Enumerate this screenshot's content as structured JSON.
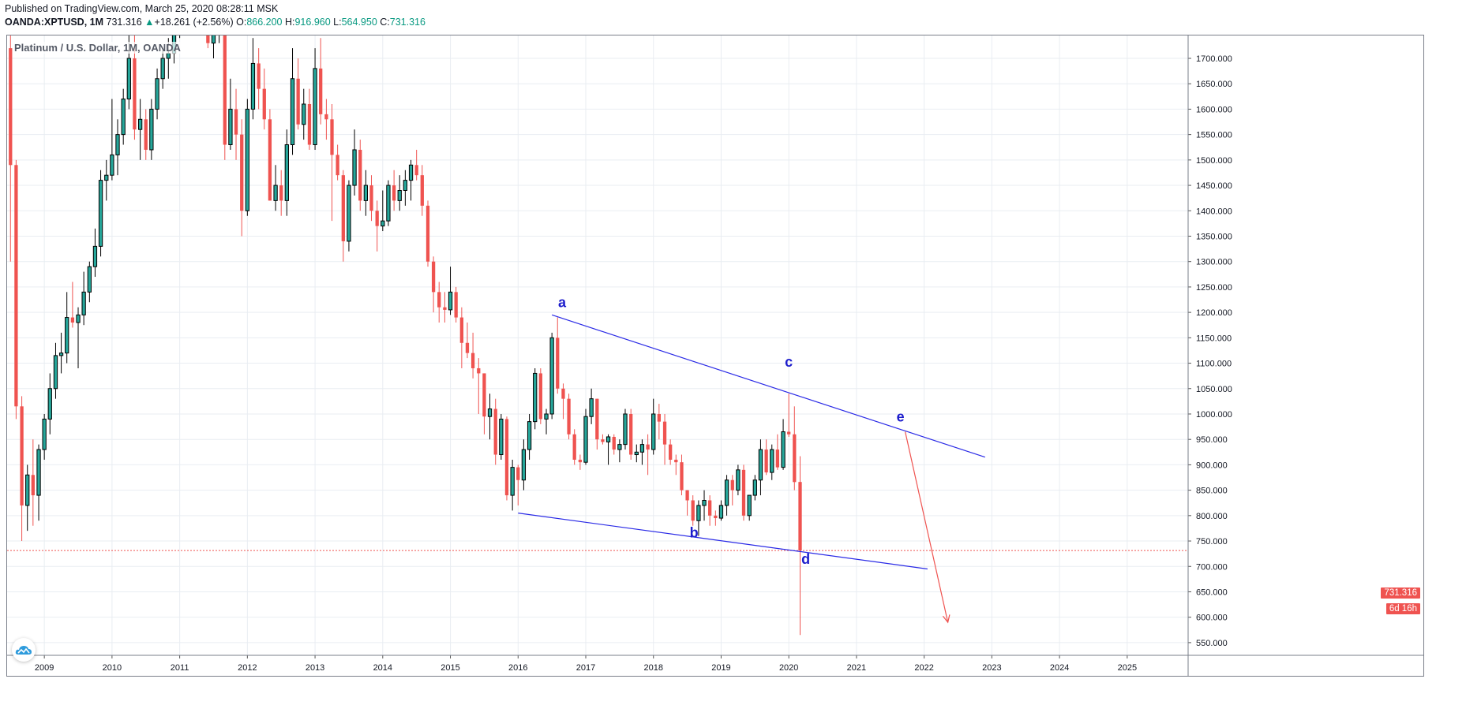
{
  "header": {
    "published": "Published on TradingView.com, March 25, 2020 08:28:11 MSK",
    "symbol": "OANDA:XPTUSD, 1M",
    "last": "731.316",
    "change_arrow": "▲",
    "change": "+18.261 (+2.56%)",
    "open_label": "O:",
    "open": "866.200",
    "high_label": "H:",
    "high": "916.960",
    "low_label": "L:",
    "low": "564.950",
    "close_label": "C:",
    "close": "731.316"
  },
  "chart_title": "Platinum / U.S. Dollar, 1M, OANDA",
  "price_tag": "731.316",
  "countdown": "6d 16h",
  "logo_icon": "tradingview-cloud-icon",
  "chart_data": {
    "type": "candlestick",
    "interval": "1M",
    "y_ticks": [
      550,
      600,
      650,
      700,
      750,
      800,
      850,
      900,
      950,
      1000,
      1050,
      1100,
      1150,
      1200,
      1250,
      1300,
      1350,
      1400,
      1450,
      1500,
      1550,
      1600,
      1650,
      1700
    ],
    "y_tick_decimals": 3,
    "ylim": [
      525,
      1745
    ],
    "x_ticks": [
      "2009",
      "2010",
      "2011",
      "2012",
      "2013",
      "2014",
      "2015",
      "2016",
      "2017",
      "2018",
      "2019",
      "2020",
      "2021",
      "2022",
      "2023",
      "2024",
      "2025"
    ],
    "x_range": [
      2008.45,
      2025.9
    ],
    "grid": true,
    "colors": {
      "up": "#26a69a",
      "up_border": "#000000",
      "down": "#ef5350",
      "grid": "#e9edf2",
      "line": "#2a2ae6",
      "arrow": "#ef5350"
    },
    "candle_width_fraction": 0.6,
    "candles": [
      {
        "t": 2008.5,
        "o": 1720,
        "h": 1790,
        "l": 1300,
        "c": 1490
      },
      {
        "t": 2008.583,
        "o": 1490,
        "h": 1500,
        "l": 990,
        "c": 1015
      },
      {
        "t": 2008.667,
        "o": 1015,
        "h": 1035,
        "l": 750,
        "c": 820
      },
      {
        "t": 2008.75,
        "o": 820,
        "h": 900,
        "l": 770,
        "c": 880
      },
      {
        "t": 2008.833,
        "o": 880,
        "h": 950,
        "l": 780,
        "c": 840
      },
      {
        "t": 2008.917,
        "o": 840,
        "h": 940,
        "l": 790,
        "c": 930
      },
      {
        "t": 2009.0,
        "o": 930,
        "h": 1000,
        "l": 910,
        "c": 990
      },
      {
        "t": 2009.083,
        "o": 990,
        "h": 1080,
        "l": 960,
        "c": 1050
      },
      {
        "t": 2009.167,
        "o": 1050,
        "h": 1140,
        "l": 1030,
        "c": 1115
      },
      {
        "t": 2009.25,
        "o": 1115,
        "h": 1160,
        "l": 1080,
        "c": 1120
      },
      {
        "t": 2009.333,
        "o": 1120,
        "h": 1240,
        "l": 1100,
        "c": 1190
      },
      {
        "t": 2009.417,
        "o": 1190,
        "h": 1260,
        "l": 1170,
        "c": 1180
      },
      {
        "t": 2009.5,
        "o": 1180,
        "h": 1210,
        "l": 1090,
        "c": 1195
      },
      {
        "t": 2009.583,
        "o": 1195,
        "h": 1280,
        "l": 1175,
        "c": 1240
      },
      {
        "t": 2009.667,
        "o": 1240,
        "h": 1300,
        "l": 1220,
        "c": 1290
      },
      {
        "t": 2009.75,
        "o": 1290,
        "h": 1365,
        "l": 1270,
        "c": 1330
      },
      {
        "t": 2009.833,
        "o": 1330,
        "h": 1480,
        "l": 1310,
        "c": 1460
      },
      {
        "t": 2009.917,
        "o": 1460,
        "h": 1500,
        "l": 1420,
        "c": 1470
      },
      {
        "t": 2010.0,
        "o": 1470,
        "h": 1620,
        "l": 1460,
        "c": 1510
      },
      {
        "t": 2010.083,
        "o": 1510,
        "h": 1580,
        "l": 1470,
        "c": 1550
      },
      {
        "t": 2010.167,
        "o": 1550,
        "h": 1640,
        "l": 1530,
        "c": 1620
      },
      {
        "t": 2010.25,
        "o": 1620,
        "h": 1750,
        "l": 1600,
        "c": 1700
      },
      {
        "t": 2010.333,
        "o": 1700,
        "h": 1760,
        "l": 1540,
        "c": 1560
      },
      {
        "t": 2010.417,
        "o": 1560,
        "h": 1620,
        "l": 1500,
        "c": 1580
      },
      {
        "t": 2010.5,
        "o": 1580,
        "h": 1600,
        "l": 1500,
        "c": 1520
      },
      {
        "t": 2010.583,
        "o": 1520,
        "h": 1620,
        "l": 1500,
        "c": 1600
      },
      {
        "t": 2010.667,
        "o": 1600,
        "h": 1680,
        "l": 1580,
        "c": 1660
      },
      {
        "t": 2010.75,
        "o": 1660,
        "h": 1720,
        "l": 1640,
        "c": 1700
      },
      {
        "t": 2010.833,
        "o": 1700,
        "h": 1740,
        "l": 1660,
        "c": 1710
      },
      {
        "t": 2010.917,
        "o": 1710,
        "h": 1770,
        "l": 1690,
        "c": 1760
      },
      {
        "t": 2011.0,
        "o": 1760,
        "h": 1860,
        "l": 1740,
        "c": 1790
      },
      {
        "t": 2011.083,
        "o": 1790,
        "h": 1830,
        "l": 1750,
        "c": 1810
      },
      {
        "t": 2011.167,
        "o": 1810,
        "h": 1860,
        "l": 1780,
        "c": 1800
      },
      {
        "t": 2011.25,
        "o": 1800,
        "h": 1890,
        "l": 1780,
        "c": 1820
      },
      {
        "t": 2011.333,
        "o": 1820,
        "h": 1840,
        "l": 1760,
        "c": 1790
      },
      {
        "t": 2011.417,
        "o": 1790,
        "h": 1800,
        "l": 1720,
        "c": 1730
      },
      {
        "t": 2011.5,
        "o": 1730,
        "h": 1800,
        "l": 1700,
        "c": 1760
      },
      {
        "t": 2011.583,
        "o": 1760,
        "h": 1880,
        "l": 1730,
        "c": 1780
      },
      {
        "t": 2011.667,
        "o": 1780,
        "h": 1800,
        "l": 1500,
        "c": 1530
      },
      {
        "t": 2011.75,
        "o": 1530,
        "h": 1660,
        "l": 1520,
        "c": 1600
      },
      {
        "t": 2011.833,
        "o": 1600,
        "h": 1640,
        "l": 1500,
        "c": 1550
      },
      {
        "t": 2011.917,
        "o": 1550,
        "h": 1580,
        "l": 1350,
        "c": 1400
      },
      {
        "t": 2012.0,
        "o": 1400,
        "h": 1620,
        "l": 1390,
        "c": 1600
      },
      {
        "t": 2012.083,
        "o": 1600,
        "h": 1740,
        "l": 1580,
        "c": 1690
      },
      {
        "t": 2012.167,
        "o": 1690,
        "h": 1720,
        "l": 1600,
        "c": 1640
      },
      {
        "t": 2012.25,
        "o": 1640,
        "h": 1680,
        "l": 1560,
        "c": 1580
      },
      {
        "t": 2012.333,
        "o": 1580,
        "h": 1600,
        "l": 1420,
        "c": 1420
      },
      {
        "t": 2012.417,
        "o": 1420,
        "h": 1490,
        "l": 1400,
        "c": 1450
      },
      {
        "t": 2012.5,
        "o": 1450,
        "h": 1480,
        "l": 1390,
        "c": 1420
      },
      {
        "t": 2012.583,
        "o": 1420,
        "h": 1560,
        "l": 1390,
        "c": 1530
      },
      {
        "t": 2012.667,
        "o": 1530,
        "h": 1720,
        "l": 1510,
        "c": 1660
      },
      {
        "t": 2012.75,
        "o": 1660,
        "h": 1700,
        "l": 1560,
        "c": 1570
      },
      {
        "t": 2012.833,
        "o": 1570,
        "h": 1640,
        "l": 1540,
        "c": 1610
      },
      {
        "t": 2012.917,
        "o": 1610,
        "h": 1640,
        "l": 1520,
        "c": 1530
      },
      {
        "t": 2013.0,
        "o": 1530,
        "h": 1720,
        "l": 1520,
        "c": 1680
      },
      {
        "t": 2013.083,
        "o": 1680,
        "h": 1740,
        "l": 1570,
        "c": 1590
      },
      {
        "t": 2013.167,
        "o": 1590,
        "h": 1620,
        "l": 1540,
        "c": 1580
      },
      {
        "t": 2013.25,
        "o": 1580,
        "h": 1610,
        "l": 1380,
        "c": 1510
      },
      {
        "t": 2013.333,
        "o": 1510,
        "h": 1530,
        "l": 1460,
        "c": 1470
      },
      {
        "t": 2013.417,
        "o": 1470,
        "h": 1480,
        "l": 1300,
        "c": 1340
      },
      {
        "t": 2013.5,
        "o": 1340,
        "h": 1460,
        "l": 1320,
        "c": 1450
      },
      {
        "t": 2013.583,
        "o": 1450,
        "h": 1560,
        "l": 1430,
        "c": 1520
      },
      {
        "t": 2013.667,
        "o": 1520,
        "h": 1540,
        "l": 1400,
        "c": 1420
      },
      {
        "t": 2013.75,
        "o": 1420,
        "h": 1480,
        "l": 1390,
        "c": 1450
      },
      {
        "t": 2013.833,
        "o": 1450,
        "h": 1470,
        "l": 1380,
        "c": 1400
      },
      {
        "t": 2013.917,
        "o": 1400,
        "h": 1420,
        "l": 1320,
        "c": 1370
      },
      {
        "t": 2014.0,
        "o": 1370,
        "h": 1440,
        "l": 1360,
        "c": 1380
      },
      {
        "t": 2014.083,
        "o": 1380,
        "h": 1460,
        "l": 1370,
        "c": 1450
      },
      {
        "t": 2014.167,
        "o": 1450,
        "h": 1480,
        "l": 1400,
        "c": 1420
      },
      {
        "t": 2014.25,
        "o": 1420,
        "h": 1470,
        "l": 1400,
        "c": 1440
      },
      {
        "t": 2014.333,
        "o": 1440,
        "h": 1480,
        "l": 1410,
        "c": 1460
      },
      {
        "t": 2014.417,
        "o": 1460,
        "h": 1500,
        "l": 1420,
        "c": 1490
      },
      {
        "t": 2014.5,
        "o": 1490,
        "h": 1520,
        "l": 1460,
        "c": 1470
      },
      {
        "t": 2014.583,
        "o": 1470,
        "h": 1490,
        "l": 1390,
        "c": 1410
      },
      {
        "t": 2014.667,
        "o": 1410,
        "h": 1420,
        "l": 1290,
        "c": 1300
      },
      {
        "t": 2014.75,
        "o": 1300,
        "h": 1310,
        "l": 1200,
        "c": 1240
      },
      {
        "t": 2014.833,
        "o": 1240,
        "h": 1260,
        "l": 1180,
        "c": 1210
      },
      {
        "t": 2014.917,
        "o": 1210,
        "h": 1240,
        "l": 1180,
        "c": 1205
      },
      {
        "t": 2015.0,
        "o": 1205,
        "h": 1290,
        "l": 1195,
        "c": 1240
      },
      {
        "t": 2015.083,
        "o": 1240,
        "h": 1250,
        "l": 1180,
        "c": 1190
      },
      {
        "t": 2015.167,
        "o": 1190,
        "h": 1210,
        "l": 1090,
        "c": 1140
      },
      {
        "t": 2015.25,
        "o": 1140,
        "h": 1180,
        "l": 1110,
        "c": 1120
      },
      {
        "t": 2015.333,
        "o": 1120,
        "h": 1160,
        "l": 1070,
        "c": 1090
      },
      {
        "t": 2015.417,
        "o": 1090,
        "h": 1110,
        "l": 1000,
        "c": 1080
      },
      {
        "t": 2015.5,
        "o": 1080,
        "h": 1080,
        "l": 960,
        "c": 995
      },
      {
        "t": 2015.583,
        "o": 995,
        "h": 1040,
        "l": 950,
        "c": 1010
      },
      {
        "t": 2015.667,
        "o": 1010,
        "h": 1030,
        "l": 900,
        "c": 920
      },
      {
        "t": 2015.75,
        "o": 920,
        "h": 1000,
        "l": 910,
        "c": 990
      },
      {
        "t": 2015.833,
        "o": 990,
        "h": 995,
        "l": 830,
        "c": 840
      },
      {
        "t": 2015.917,
        "o": 840,
        "h": 910,
        "l": 810,
        "c": 895
      },
      {
        "t": 2016.0,
        "o": 895,
        "h": 900,
        "l": 820,
        "c": 870
      },
      {
        "t": 2016.083,
        "o": 870,
        "h": 950,
        "l": 850,
        "c": 930
      },
      {
        "t": 2016.167,
        "o": 930,
        "h": 1000,
        "l": 910,
        "c": 985
      },
      {
        "t": 2016.25,
        "o": 985,
        "h": 1090,
        "l": 970,
        "c": 1080
      },
      {
        "t": 2016.333,
        "o": 1080,
        "h": 1090,
        "l": 980,
        "c": 990
      },
      {
        "t": 2016.417,
        "o": 990,
        "h": 1010,
        "l": 960,
        "c": 1000
      },
      {
        "t": 2016.5,
        "o": 1000,
        "h": 1160,
        "l": 990,
        "c": 1150
      },
      {
        "t": 2016.583,
        "o": 1150,
        "h": 1190,
        "l": 1040,
        "c": 1050
      },
      {
        "t": 2016.667,
        "o": 1050,
        "h": 1060,
        "l": 990,
        "c": 1030
      },
      {
        "t": 2016.75,
        "o": 1030,
        "h": 1040,
        "l": 950,
        "c": 960
      },
      {
        "t": 2016.833,
        "o": 960,
        "h": 970,
        "l": 900,
        "c": 910
      },
      {
        "t": 2016.917,
        "o": 910,
        "h": 920,
        "l": 890,
        "c": 905
      },
      {
        "t": 2017.0,
        "o": 905,
        "h": 1010,
        "l": 900,
        "c": 995
      },
      {
        "t": 2017.083,
        "o": 995,
        "h": 1050,
        "l": 980,
        "c": 1030
      },
      {
        "t": 2017.167,
        "o": 1030,
        "h": 1030,
        "l": 930,
        "c": 950
      },
      {
        "t": 2017.25,
        "o": 950,
        "h": 960,
        "l": 940,
        "c": 945
      },
      {
        "t": 2017.333,
        "o": 945,
        "h": 960,
        "l": 900,
        "c": 955
      },
      {
        "t": 2017.417,
        "o": 955,
        "h": 960,
        "l": 920,
        "c": 930
      },
      {
        "t": 2017.5,
        "o": 930,
        "h": 950,
        "l": 905,
        "c": 940
      },
      {
        "t": 2017.583,
        "o": 940,
        "h": 1010,
        "l": 930,
        "c": 1000
      },
      {
        "t": 2017.667,
        "o": 1000,
        "h": 1010,
        "l": 910,
        "c": 920
      },
      {
        "t": 2017.75,
        "o": 920,
        "h": 940,
        "l": 905,
        "c": 925
      },
      {
        "t": 2017.833,
        "o": 925,
        "h": 950,
        "l": 900,
        "c": 940
      },
      {
        "t": 2017.917,
        "o": 940,
        "h": 960,
        "l": 880,
        "c": 930
      },
      {
        "t": 2018.0,
        "o": 930,
        "h": 1030,
        "l": 920,
        "c": 1000
      },
      {
        "t": 2018.083,
        "o": 1000,
        "h": 1020,
        "l": 950,
        "c": 985
      },
      {
        "t": 2018.167,
        "o": 985,
        "h": 1000,
        "l": 900,
        "c": 940
      },
      {
        "t": 2018.25,
        "o": 940,
        "h": 950,
        "l": 900,
        "c": 910
      },
      {
        "t": 2018.333,
        "o": 910,
        "h": 920,
        "l": 880,
        "c": 905
      },
      {
        "t": 2018.417,
        "o": 905,
        "h": 920,
        "l": 840,
        "c": 850
      },
      {
        "t": 2018.5,
        "o": 850,
        "h": 850,
        "l": 800,
        "c": 830
      },
      {
        "t": 2018.583,
        "o": 830,
        "h": 840,
        "l": 780,
        "c": 790
      },
      {
        "t": 2018.667,
        "o": 790,
        "h": 830,
        "l": 760,
        "c": 820
      },
      {
        "t": 2018.75,
        "o": 820,
        "h": 850,
        "l": 790,
        "c": 830
      },
      {
        "t": 2018.833,
        "o": 830,
        "h": 840,
        "l": 780,
        "c": 800
      },
      {
        "t": 2018.917,
        "o": 800,
        "h": 810,
        "l": 780,
        "c": 795
      },
      {
        "t": 2019.0,
        "o": 795,
        "h": 830,
        "l": 790,
        "c": 820
      },
      {
        "t": 2019.083,
        "o": 820,
        "h": 880,
        "l": 800,
        "c": 870
      },
      {
        "t": 2019.167,
        "o": 870,
        "h": 880,
        "l": 820,
        "c": 850
      },
      {
        "t": 2019.25,
        "o": 850,
        "h": 900,
        "l": 840,
        "c": 890
      },
      {
        "t": 2019.333,
        "o": 890,
        "h": 900,
        "l": 790,
        "c": 800
      },
      {
        "t": 2019.417,
        "o": 800,
        "h": 840,
        "l": 790,
        "c": 840
      },
      {
        "t": 2019.5,
        "o": 840,
        "h": 880,
        "l": 830,
        "c": 870
      },
      {
        "t": 2019.583,
        "o": 870,
        "h": 950,
        "l": 840,
        "c": 930
      },
      {
        "t": 2019.667,
        "o": 930,
        "h": 950,
        "l": 880,
        "c": 885
      },
      {
        "t": 2019.75,
        "o": 885,
        "h": 940,
        "l": 870,
        "c": 930
      },
      {
        "t": 2019.833,
        "o": 930,
        "h": 960,
        "l": 890,
        "c": 895
      },
      {
        "t": 2019.917,
        "o": 895,
        "h": 990,
        "l": 890,
        "c": 965
      },
      {
        "t": 2020.0,
        "o": 965,
        "h": 1040,
        "l": 955,
        "c": 960
      },
      {
        "t": 2020.083,
        "o": 960,
        "h": 1015,
        "l": 850,
        "c": 866
      },
      {
        "t": 2020.167,
        "o": 866.2,
        "h": 916.96,
        "l": 564.95,
        "c": 731.316
      }
    ],
    "trendlines": [
      {
        "t1": 2016.5,
        "p1": 1195,
        "t2": 2022.9,
        "p2": 915
      },
      {
        "t1": 2016.0,
        "p1": 805,
        "t2": 2022.05,
        "p2": 695
      }
    ],
    "arrow": {
      "t1": 2021.72,
      "p1": 965,
      "t2": 2022.35,
      "p2": 590
    },
    "wave_labels": [
      {
        "text": "a",
        "t": 2016.65,
        "p": 1210
      },
      {
        "text": "b",
        "t": 2018.6,
        "p": 757
      },
      {
        "text": "c",
        "t": 2020.0,
        "p": 1093
      },
      {
        "text": "d",
        "t": 2020.25,
        "p": 705
      },
      {
        "text": "e",
        "t": 2021.65,
        "p": 985
      }
    ],
    "price_line": 731.316
  }
}
